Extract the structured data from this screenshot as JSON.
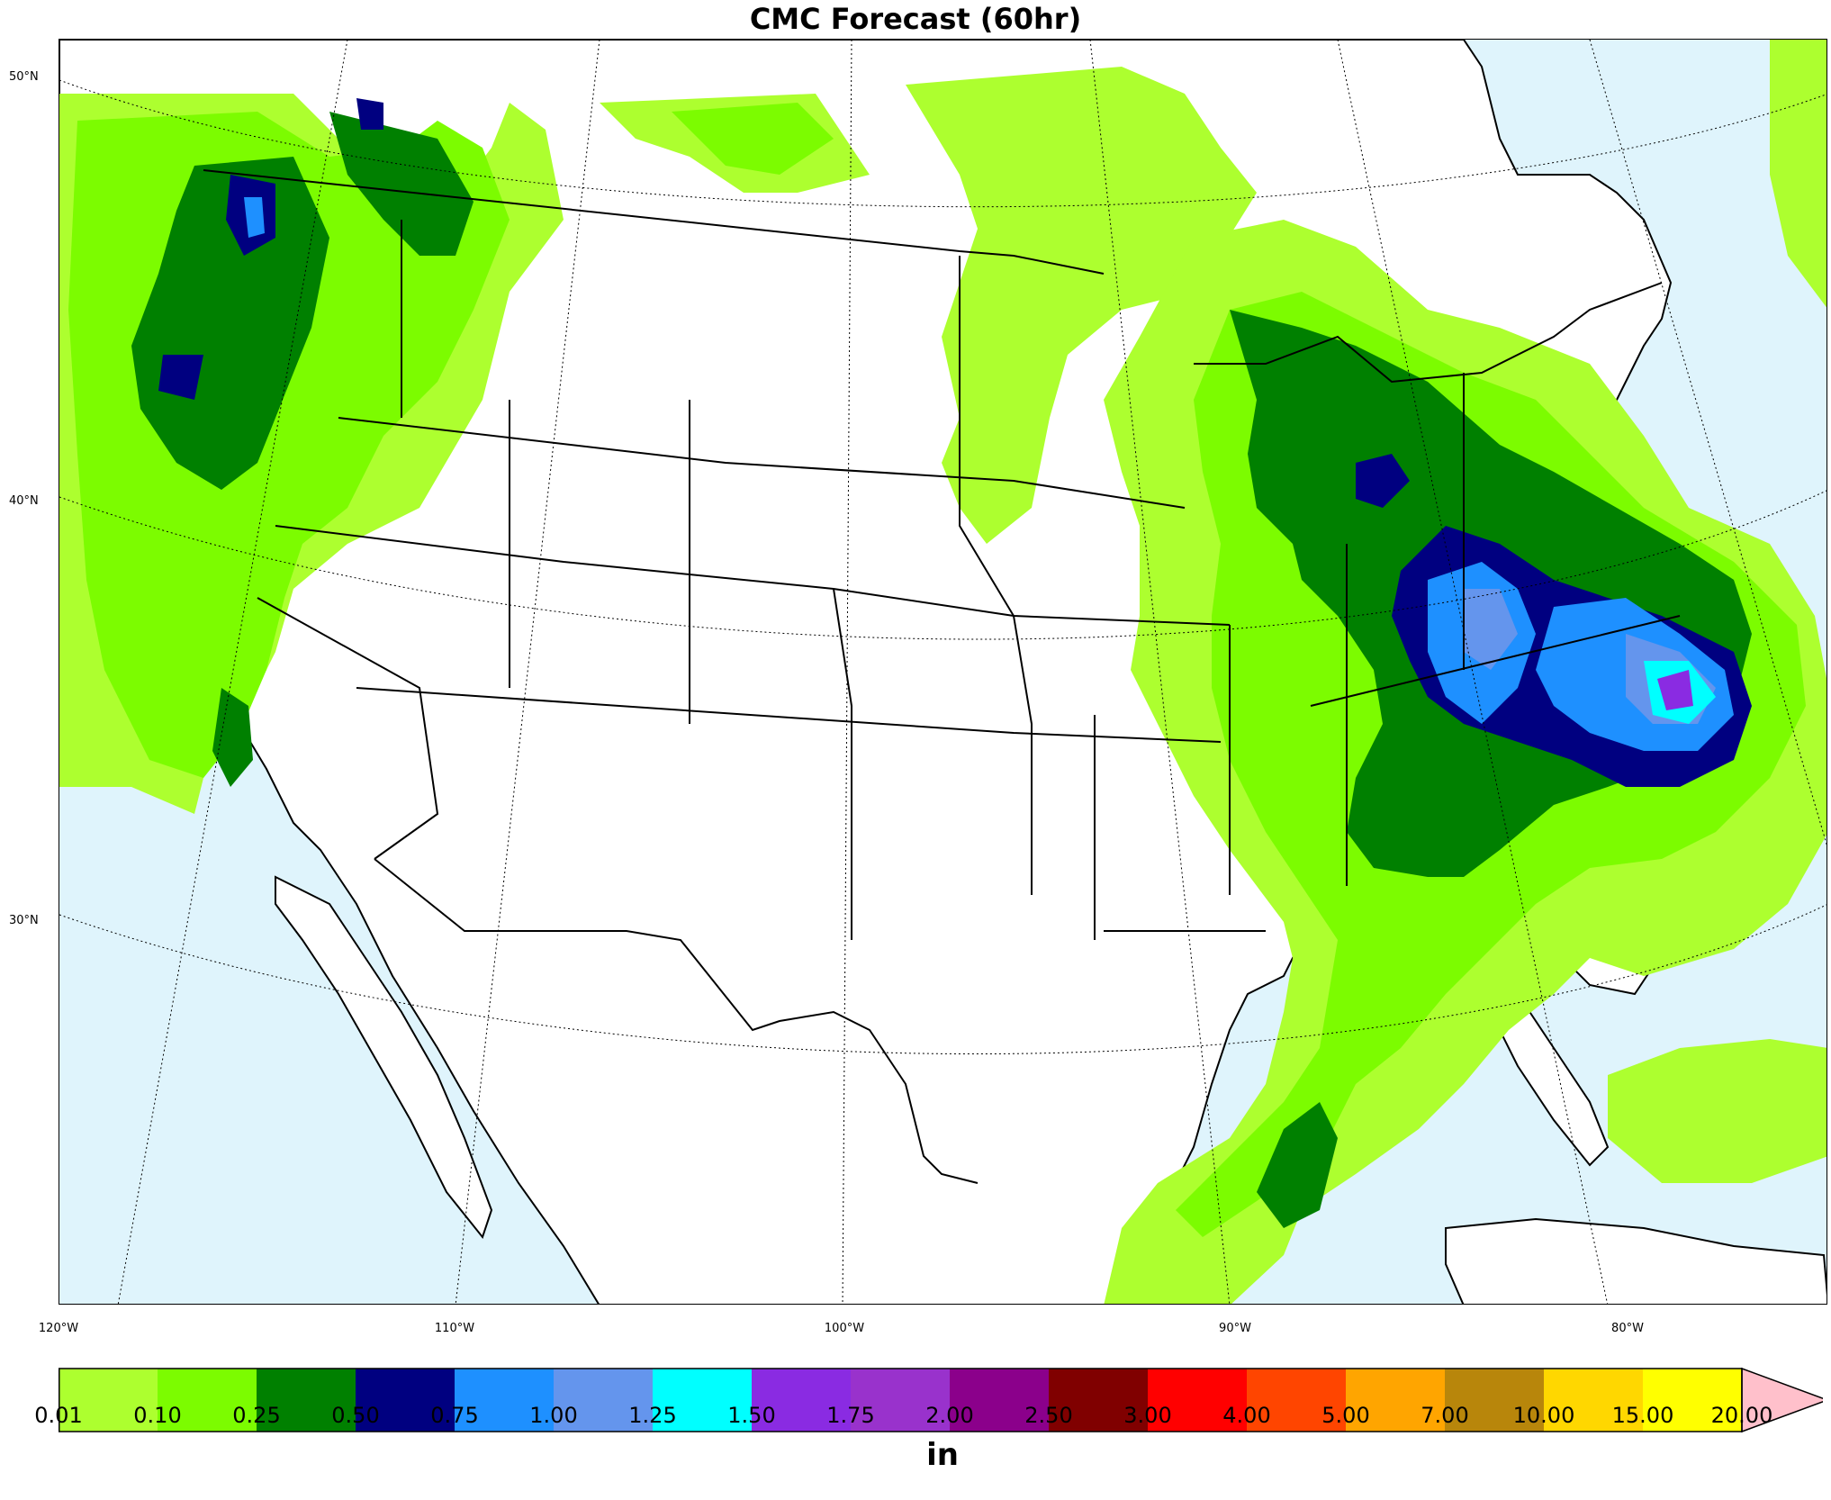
{
  "title": "CMC Forecast (60hr)",
  "latitude_labels": [
    "50°N",
    "40°N",
    "30°N"
  ],
  "longitude_labels": [
    "120°W",
    "110°W",
    "100°W",
    "90°W",
    "80°W"
  ],
  "colorbar": {
    "units": "in",
    "ticks": [
      "0.01",
      "0.10",
      "0.25",
      "0.50",
      "0.75",
      "1.00",
      "1.25",
      "1.50",
      "1.75",
      "2.00",
      "2.50",
      "3.00",
      "4.00",
      "5.00",
      "7.00",
      "10.00",
      "15.00",
      "20.00"
    ],
    "colors": [
      "#adff2f",
      "#7cfc00",
      "#008000",
      "#000080",
      "#1e90ff",
      "#6495ed",
      "#00ffff",
      "#8a2be2",
      "#9932cc",
      "#8b008b",
      "#800000",
      "#ff0000",
      "#ff4500",
      "#ffa500",
      "#b8860b",
      "#ffd700",
      "#ffff00"
    ],
    "extend_color": "#ffc0cb"
  },
  "colors": {
    "ocean": "#dff4fc",
    "land": "#ffffff"
  }
}
